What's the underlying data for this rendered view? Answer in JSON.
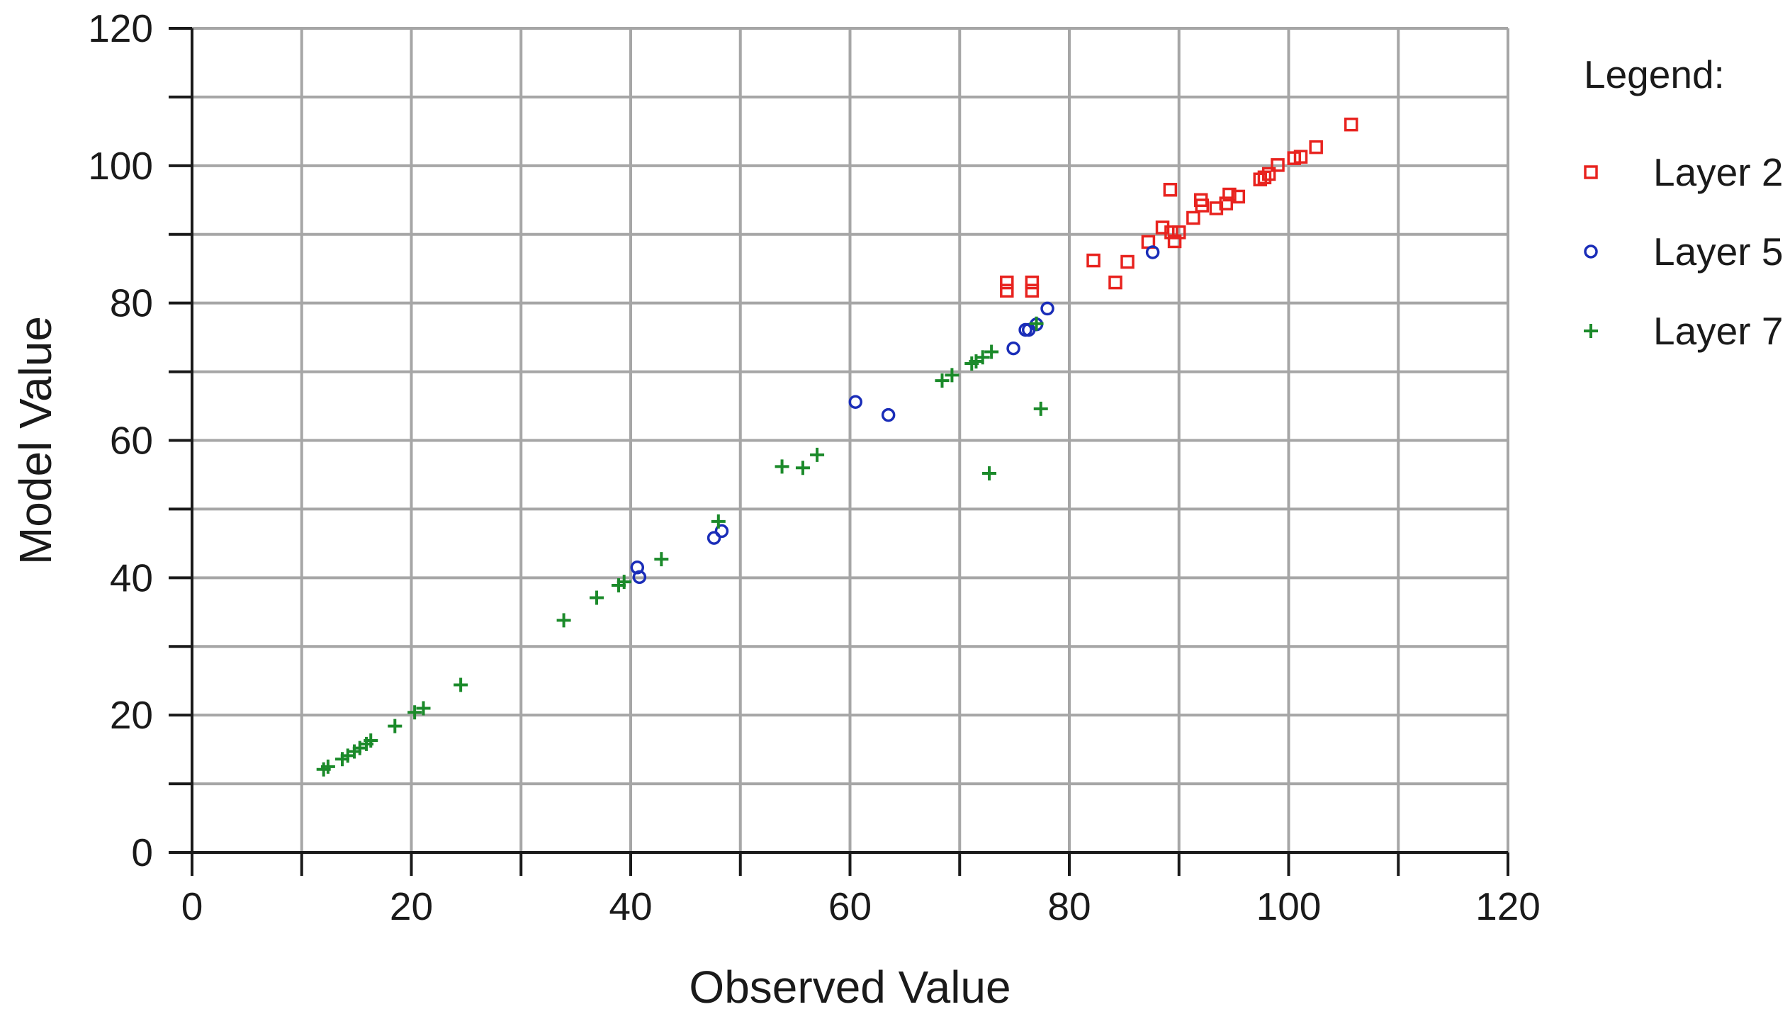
{
  "chart_data": {
    "type": "scatter",
    "title": "",
    "xlabel": "Observed Value",
    "ylabel": "Model Value",
    "xlim": [
      0,
      120
    ],
    "ylim": [
      0,
      120
    ],
    "x_major_ticks": [
      0,
      20,
      40,
      60,
      80,
      100,
      120
    ],
    "y_major_ticks": [
      0,
      20,
      40,
      60,
      80,
      100,
      120
    ],
    "x_tick_labels": [
      "0",
      "20",
      "40",
      "60",
      "80",
      "100",
      "120"
    ],
    "y_tick_labels": [
      "0",
      "20",
      "40",
      "60",
      "80",
      "100",
      "120"
    ],
    "grid_step": 10,
    "grid": true,
    "legend": {
      "title": "Legend:",
      "placement": "right"
    },
    "series": [
      {
        "name": "Layer 2",
        "marker": "square",
        "color": "#e8231f",
        "points": [
          [
            74.3,
            83.0
          ],
          [
            74.3,
            81.8
          ],
          [
            76.6,
            83.0
          ],
          [
            76.6,
            81.8
          ],
          [
            82.2,
            86.2
          ],
          [
            84.2,
            83.0
          ],
          [
            85.3,
            86.0
          ],
          [
            87.2,
            88.9
          ],
          [
            88.5,
            91.0
          ],
          [
            89.2,
            96.5
          ],
          [
            89.3,
            90.3
          ],
          [
            89.6,
            89.0
          ],
          [
            90.0,
            90.3
          ],
          [
            91.3,
            92.4
          ],
          [
            92.0,
            95.0
          ],
          [
            92.1,
            94.2
          ],
          [
            93.4,
            93.8
          ],
          [
            94.3,
            94.5
          ],
          [
            94.6,
            95.8
          ],
          [
            95.4,
            95.5
          ],
          [
            97.4,
            98.0
          ],
          [
            97.8,
            98.3
          ],
          [
            98.2,
            98.8
          ],
          [
            99.0,
            100.1
          ],
          [
            100.5,
            101.1
          ],
          [
            101.1,
            101.3
          ],
          [
            102.5,
            102.7
          ],
          [
            105.7,
            106.0
          ]
        ]
      },
      {
        "name": "Layer 5",
        "marker": "circle",
        "color": "#1a2db8",
        "points": [
          [
            40.6,
            41.5
          ],
          [
            40.8,
            40.1
          ],
          [
            47.6,
            45.8
          ],
          [
            48.3,
            46.8
          ],
          [
            60.5,
            65.6
          ],
          [
            63.5,
            63.7
          ],
          [
            74.9,
            73.4
          ],
          [
            76.0,
            76.1
          ],
          [
            76.3,
            76.1
          ],
          [
            77.0,
            76.9
          ],
          [
            78.0,
            79.2
          ],
          [
            87.6,
            87.4
          ]
        ]
      },
      {
        "name": "Layer 7",
        "marker": "plus",
        "color": "#1b8a2a",
        "points": [
          [
            12.0,
            12.1
          ],
          [
            12.4,
            12.5
          ],
          [
            13.7,
            13.6
          ],
          [
            14.2,
            14.1
          ],
          [
            14.8,
            14.7
          ],
          [
            15.3,
            15.2
          ],
          [
            15.9,
            15.8
          ],
          [
            16.3,
            16.3
          ],
          [
            18.5,
            18.4
          ],
          [
            20.3,
            20.4
          ],
          [
            21.1,
            21.0
          ],
          [
            24.5,
            24.4
          ],
          [
            33.9,
            33.8
          ],
          [
            36.9,
            37.1
          ],
          [
            38.9,
            38.9
          ],
          [
            39.4,
            39.4
          ],
          [
            42.8,
            42.7
          ],
          [
            48.0,
            48.2
          ],
          [
            53.8,
            56.2
          ],
          [
            55.7,
            56.0
          ],
          [
            57.0,
            57.9
          ],
          [
            68.4,
            68.7
          ],
          [
            69.3,
            69.5
          ],
          [
            71.1,
            71.2
          ],
          [
            71.5,
            71.5
          ],
          [
            72.1,
            72.1
          ],
          [
            72.9,
            72.9
          ],
          [
            72.7,
            55.2
          ],
          [
            77.4,
            64.6
          ],
          [
            77.0,
            77.0
          ]
        ]
      }
    ]
  }
}
